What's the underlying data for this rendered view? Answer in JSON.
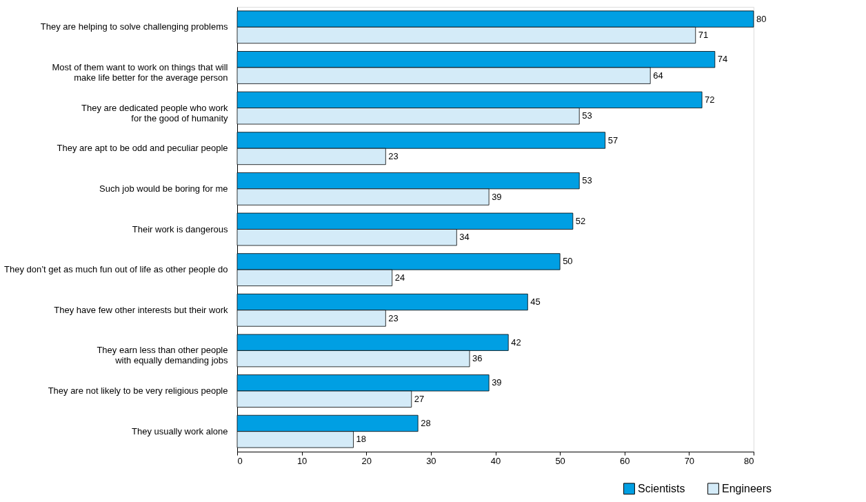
{
  "chart_data": {
    "type": "bar",
    "orientation": "horizontal",
    "categories": [
      "They are helping to solve challenging problems",
      "Most of them want to work on things that will\nmake life better for the average person",
      "They are dedicated people who work\nfor the good of humanity",
      "They are apt to be odd and peculiar people",
      "Such job would be boring for me",
      "Their work is dangerous",
      "They don’t get as much fun out of life as other people do",
      "They have few other interests but their work",
      "They earn less than other people\nwith equally demanding jobs",
      "They are not likely to be very religious people",
      "They usually work alone"
    ],
    "series": [
      {
        "name": "Scientists",
        "color": "#009fe3",
        "values": [
          80,
          74,
          72,
          57,
          53,
          52,
          50,
          45,
          42,
          39,
          28
        ]
      },
      {
        "name": "Engineers",
        "color": "#d4ebf8",
        "values": [
          71,
          64,
          53,
          23,
          39,
          34,
          24,
          23,
          36,
          27,
          18
        ]
      }
    ],
    "xlim": [
      0,
      80
    ],
    "xticks": [
      0,
      10,
      20,
      30,
      40,
      50,
      60,
      70,
      80
    ],
    "data_labels": true,
    "grid": false,
    "legend": "bottom right"
  }
}
